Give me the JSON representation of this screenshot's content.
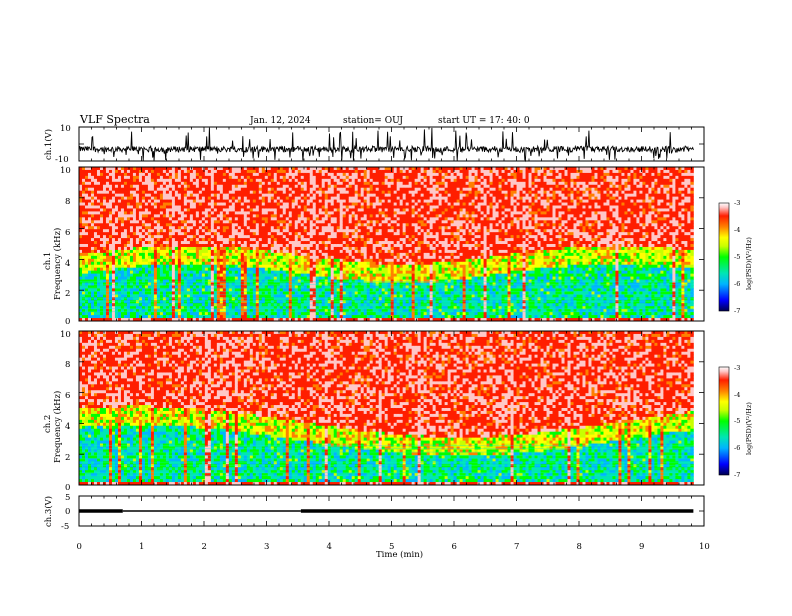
{
  "header": {
    "title": "VLF Spectra",
    "date": "Jan. 12, 2024",
    "station": "station= OUJ",
    "start": "start  UT  =   17: 40: 0"
  },
  "colors": {
    "spectrogram_scale": [
      "#000080",
      "#0000ff",
      "#00b4ff",
      "#00e6b4",
      "#00ff00",
      "#c8ff00",
      "#ffff00",
      "#ff8000",
      "#ff1e00",
      "#ffc8c8",
      "#ffffff"
    ]
  },
  "chart_data": [
    {
      "type": "line",
      "name": "waveform-ch1",
      "ylabel": "ch.1(V)",
      "ylim": [
        -10,
        10
      ],
      "yticks": [
        "10",
        "-10"
      ],
      "xlim": [
        0,
        10
      ],
      "description_values": {
        "baseline_level": -3,
        "spike_levels": [
          -10,
          10
        ],
        "data_end": 9.83
      }
    },
    {
      "type": "heatmap",
      "name": "spectrogram-ch1",
      "ylabel_line1": "ch.1",
      "ylabel_line2": "Frequency (kHz)",
      "ylim": [
        0,
        10
      ],
      "yticks": [
        "0",
        "2",
        "4",
        "6",
        "8",
        "10"
      ],
      "xlim": [
        0,
        10
      ],
      "data_end": 9.83,
      "colorbar": {
        "label": "log(PSD)(V²/Hz)",
        "range": [
          -7,
          -3
        ],
        "ticks": [
          "-3",
          "-4",
          "-5",
          "-6",
          "-7"
        ]
      }
    },
    {
      "type": "heatmap",
      "name": "spectrogram-ch2",
      "ylabel_line1": "ch.2",
      "ylabel_line2": "Frequency (kHz)",
      "ylim": [
        0,
        10
      ],
      "yticks": [
        "0",
        "2",
        "4",
        "6",
        "8",
        "10"
      ],
      "xlim": [
        0,
        10
      ],
      "data_end": 9.83,
      "colorbar": {
        "label": "log(PSD)(V²/Hz)",
        "range": [
          -7,
          -3
        ],
        "ticks": [
          "-3",
          "-4",
          "-5",
          "-6",
          "-7"
        ]
      }
    },
    {
      "type": "line",
      "name": "ch3-level",
      "ylabel": "ch.3(V)",
      "ylim": [
        -5,
        5
      ],
      "yticks": [
        "5",
        "0",
        "-5"
      ],
      "xlim": [
        0,
        10
      ],
      "xlabel": "Time (min)",
      "xticks": [
        "0",
        "1",
        "2",
        "3",
        "4",
        "5",
        "6",
        "7",
        "8",
        "9",
        "10"
      ],
      "segments": [
        {
          "x0": 0,
          "x1": 0.7,
          "y": 0
        },
        {
          "x0": 0.7,
          "x1": 3.55,
          "y": 0
        },
        {
          "x0": 3.55,
          "x1": 9.83,
          "y": 0
        }
      ]
    }
  ]
}
